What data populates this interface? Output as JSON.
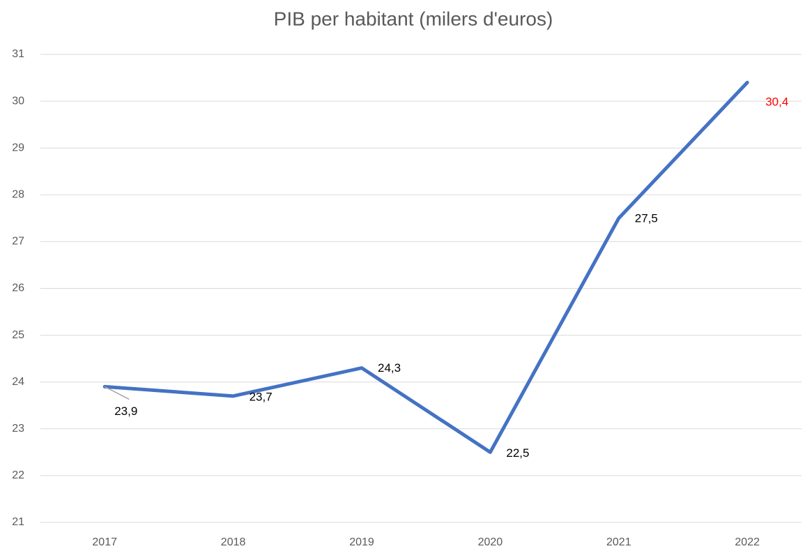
{
  "chart_data": {
    "type": "line",
    "title": "PIB per habitant (milers d'euros)",
    "categories": [
      "2017",
      "2018",
      "2019",
      "2020",
      "2021",
      "2022"
    ],
    "series": [
      {
        "name": "PIB per habitant",
        "color": "#4472c4",
        "values": [
          23.9,
          23.7,
          24.3,
          22.5,
          27.5,
          30.4
        ],
        "value_labels": [
          "23,9",
          "23,7",
          "24,3",
          "22,5",
          "27,5",
          "30,4"
        ],
        "value_label_colors": [
          "#000000",
          "#000000",
          "#000000",
          "#000000",
          "#000000",
          "#ff0000"
        ]
      }
    ],
    "ylim": [
      21,
      31
    ],
    "yticks": [
      21,
      22,
      23,
      24,
      25,
      26,
      27,
      28,
      29,
      30,
      31
    ],
    "grid": true
  }
}
